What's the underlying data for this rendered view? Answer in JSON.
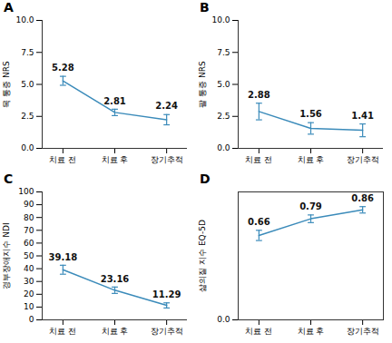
{
  "chart_data": [
    {
      "type": "line",
      "panel": "A",
      "ylabel": "목 통증 NRS",
      "categories": [
        "치료 전",
        "치료 후",
        "장기추적"
      ],
      "values": [
        5.28,
        2.81,
        2.24
      ],
      "errors": [
        0.35,
        0.25,
        0.4
      ],
      "color": "#3b8bba",
      "ylim": [
        0,
        10
      ],
      "yticks": [
        {
          "value": 0,
          "label": "0.0"
        },
        2.5,
        {
          "value": 5,
          "label": "5.0"
        },
        7.5,
        {
          "value": 10,
          "label": "10.0"
        }
      ],
      "data_labels": true,
      "grid": false
    },
    {
      "type": "line",
      "panel": "B",
      "ylabel": "팔 통증 NRS",
      "categories": [
        "치료 전",
        "치료 후",
        "장기추적"
      ],
      "values": [
        2.88,
        1.56,
        1.41
      ],
      "errors": [
        0.65,
        0.45,
        0.5
      ],
      "color": "#3b8bba",
      "ylim": [
        0,
        10
      ],
      "yticks": [
        {
          "value": 0,
          "label": "0.0"
        },
        2.5,
        {
          "value": 5,
          "label": "5.0"
        },
        7.5,
        {
          "value": 10,
          "label": "10.0"
        }
      ],
      "data_labels": true,
      "grid": false
    },
    {
      "type": "line",
      "panel": "C",
      "ylabel": "경부장애지수 NDI",
      "categories": [
        "치료 전",
        "치료 후",
        "장기추적"
      ],
      "values": [
        39.18,
        23.16,
        11.29
      ],
      "errors": [
        3.5,
        2.5,
        2.0
      ],
      "color": "#3b8bba",
      "ylim": [
        0,
        100
      ],
      "yticks": [
        0,
        10,
        20,
        30,
        40,
        50,
        60,
        70,
        80,
        90,
        100
      ],
      "data_labels": true,
      "grid": false
    },
    {
      "type": "line",
      "panel": "D",
      "ylabel": "삶의질 지수 EQ-5D",
      "categories": [
        "치료 전",
        "치료 후",
        "장기추적"
      ],
      "values": [
        0.66,
        0.79,
        0.86
      ],
      "errors": [
        0.04,
        0.03,
        0.025
      ],
      "color": "#3b8bba",
      "ylim": [
        0,
        1
      ],
      "yticks": [
        {
          "value": 0,
          "label": "0.0"
        }
      ],
      "data_labels": true,
      "grid": false
    }
  ]
}
